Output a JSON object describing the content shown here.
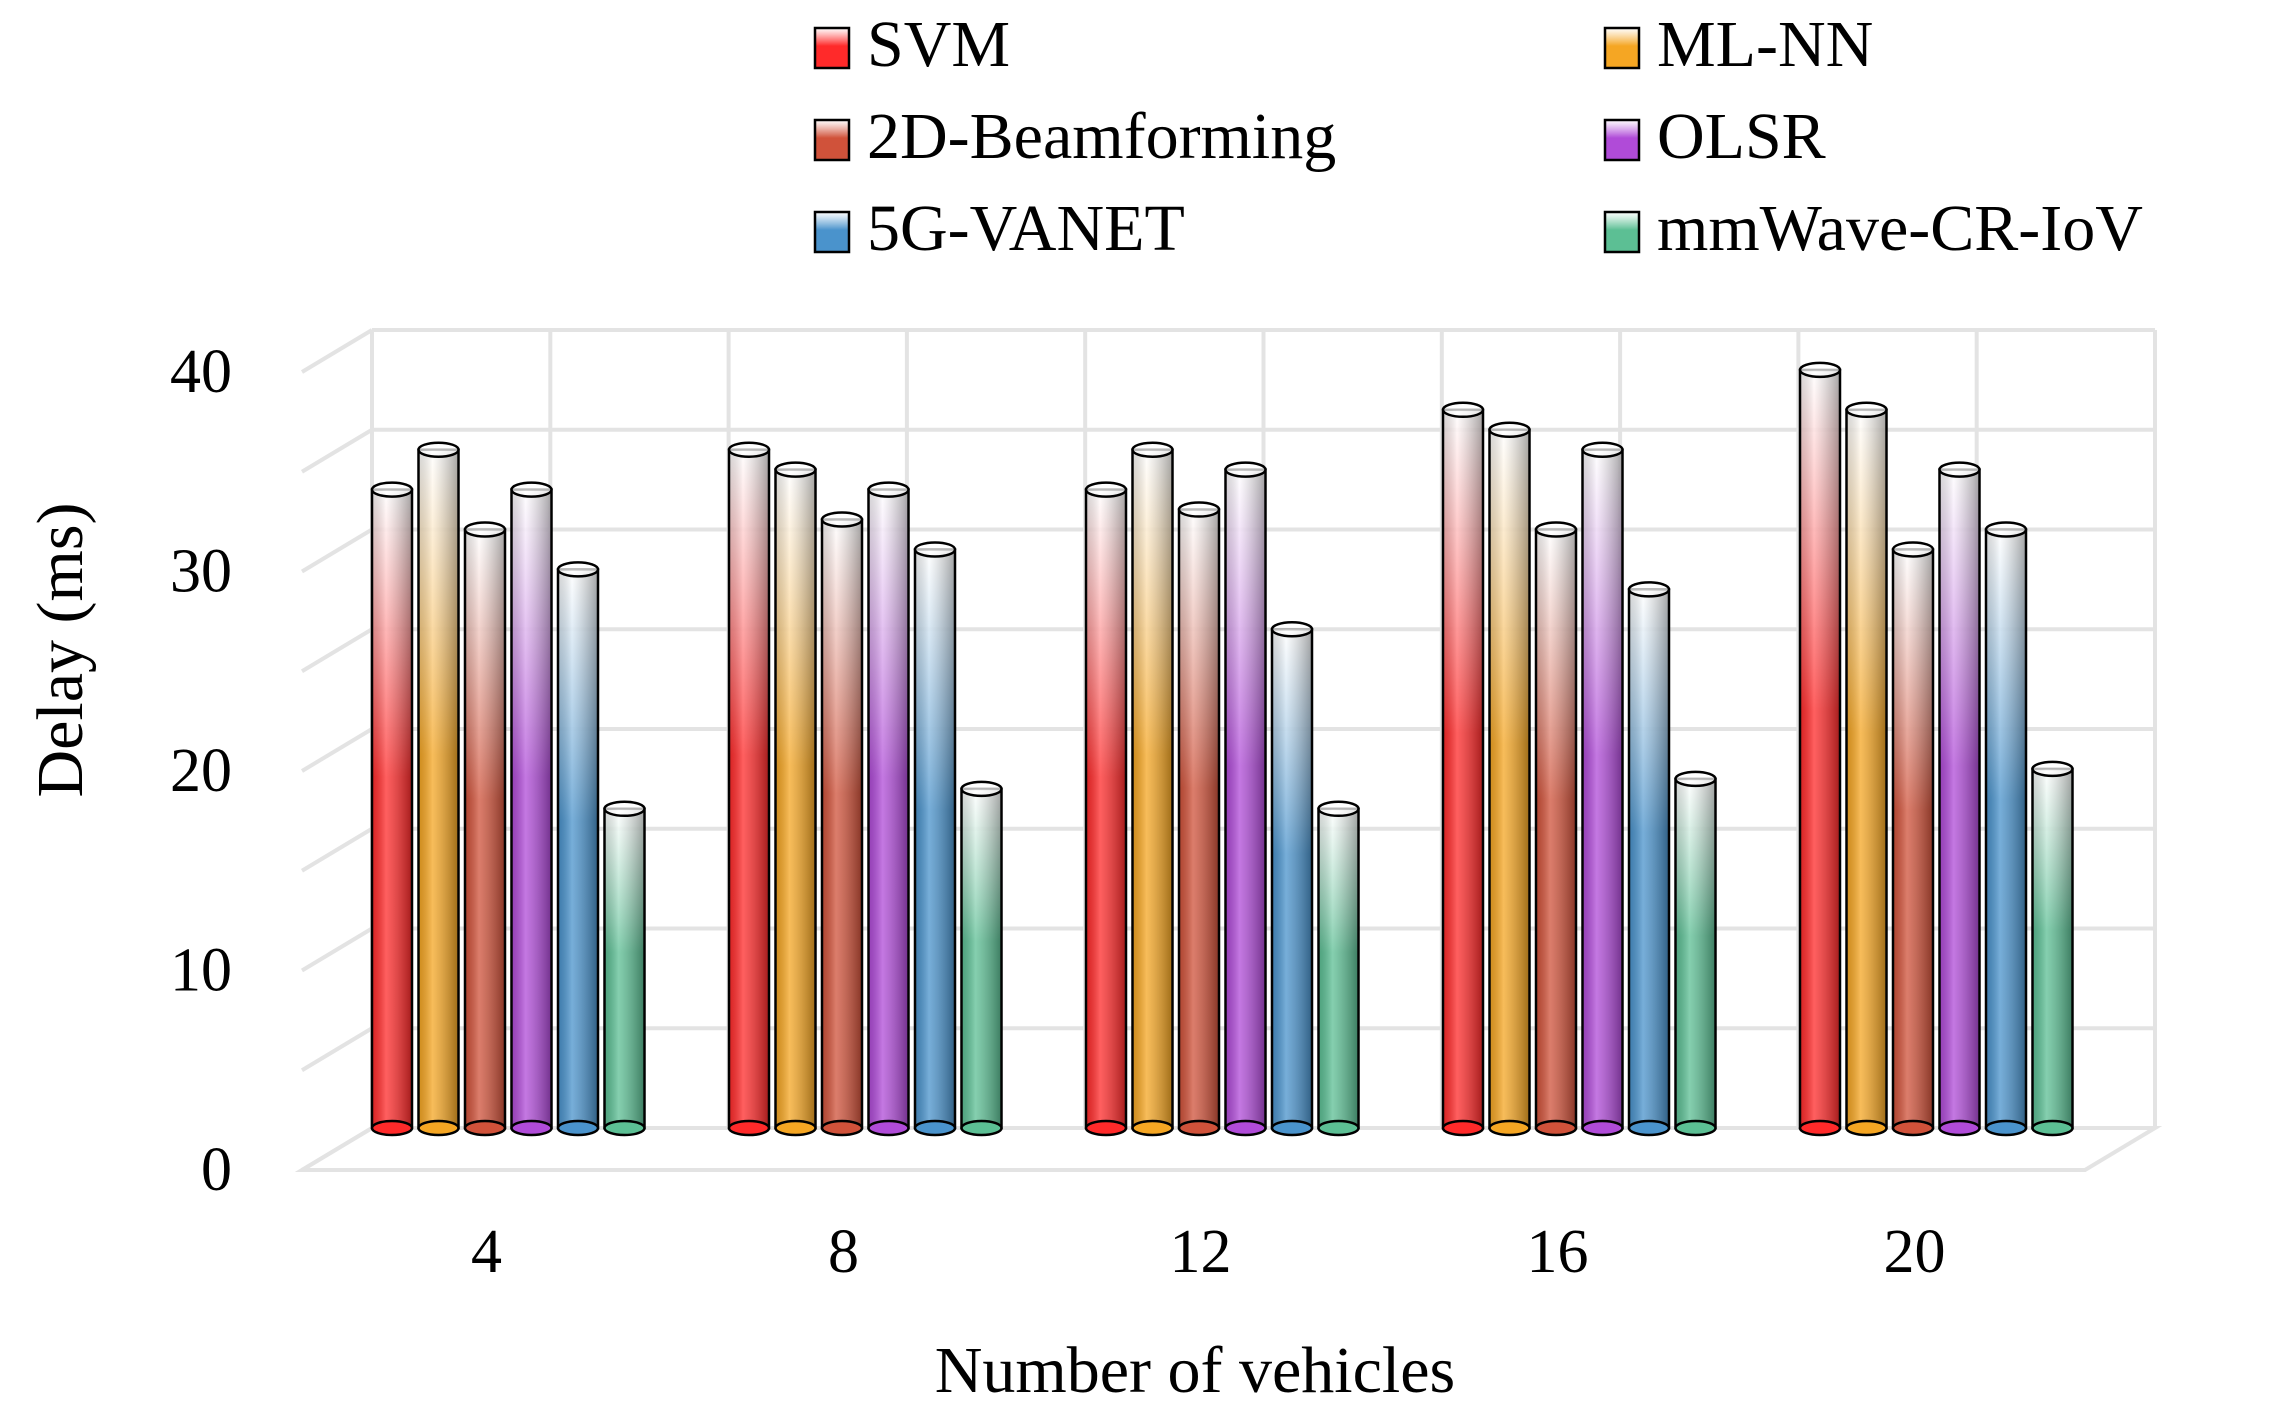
{
  "chart_data": {
    "type": "bar",
    "title": "",
    "xlabel": "Number of vehicles",
    "ylabel": "Delay (ms)",
    "categories": [
      "4",
      "8",
      "12",
      "16",
      "20"
    ],
    "yticks": [
      "0",
      "10",
      "20",
      "30",
      "40"
    ],
    "ylim": [
      0,
      40
    ],
    "grid": true,
    "legend_position": "top",
    "series": [
      {
        "name": "SVM",
        "color": "#ff2a2a",
        "values": [
          32,
          34,
          32,
          36,
          38
        ]
      },
      {
        "name": "ML-NN",
        "color": "#f5a623",
        "values": [
          34,
          33,
          34,
          35,
          36
        ]
      },
      {
        "name": "2D-Beamforming",
        "color": "#d0523a",
        "values": [
          30,
          30.5,
          31,
          30,
          29
        ]
      },
      {
        "name": "OLSR",
        "color": "#b04bd8",
        "values": [
          32,
          32,
          33,
          34,
          33
        ]
      },
      {
        "name": "5G-VANET",
        "color": "#4a93cc",
        "values": [
          28,
          29,
          25,
          27,
          30
        ]
      },
      {
        "name": "mmWave-CR-IoV",
        "color": "#5cbf94",
        "values": [
          16,
          17,
          16,
          17.5,
          18
        ]
      }
    ]
  }
}
